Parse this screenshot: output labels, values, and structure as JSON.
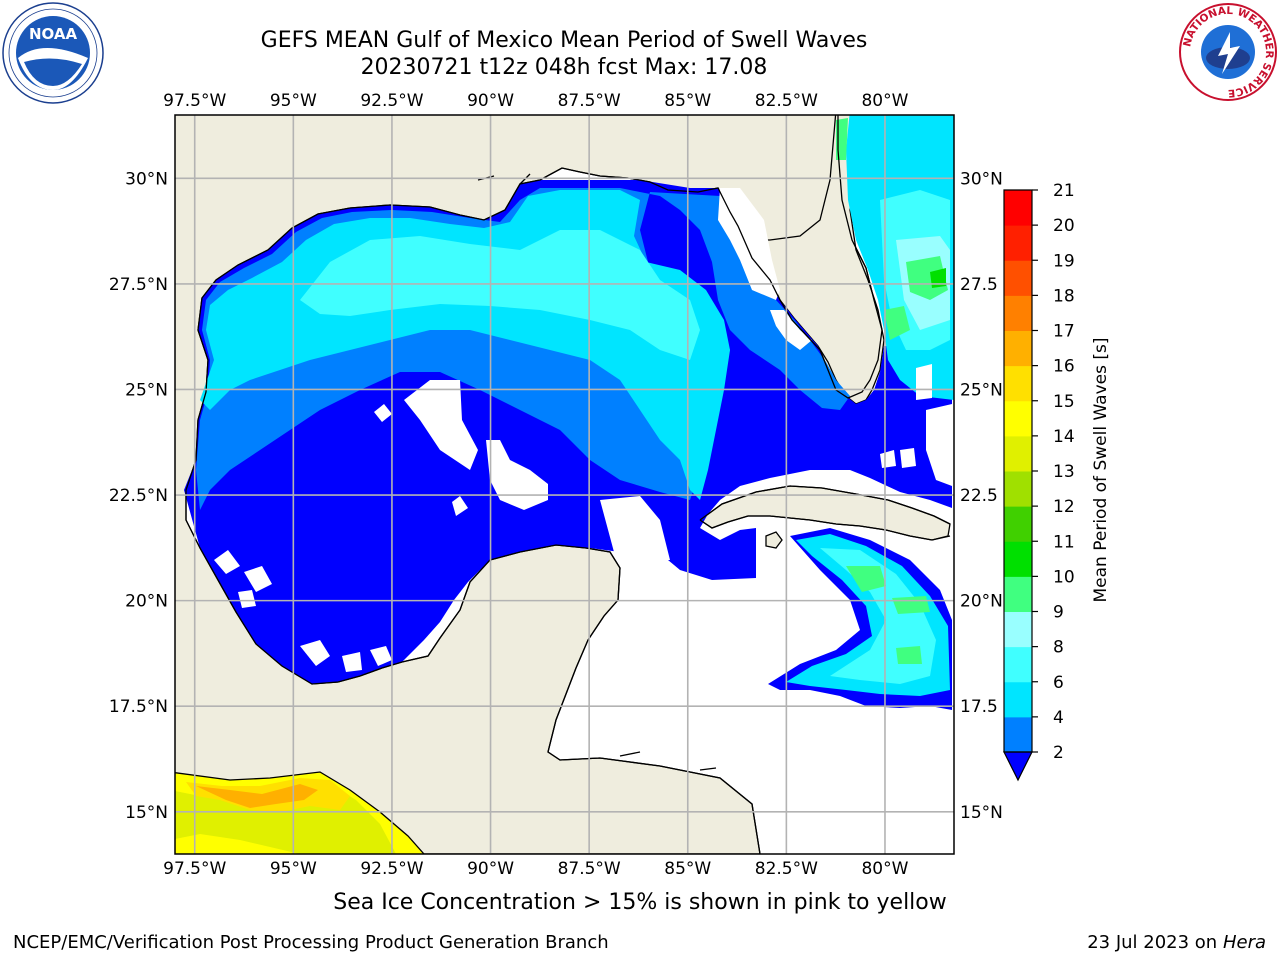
{
  "title_line1": "GEFS MEAN Gulf of Mexico Mean Period of Swell Waves",
  "title_line2": "20230721 t12z 048h fcst   Max: 17.08",
  "lon_ticks": [
    "97.5°W",
    "95°W",
    "92.5°W",
    "90°W",
    "87.5°W",
    "85°W",
    "82.5°W",
    "80°W"
  ],
  "lat_ticks_left": [
    "30°N",
    "27.5°N",
    "25°N",
    "22.5°N",
    "20°N",
    "17.5°N",
    "15°N"
  ],
  "lat_ticks_right": [
    "30°N",
    "27.5",
    "25°N",
    "22.5",
    "20°N",
    "17.5",
    "15°N"
  ],
  "lon_values": [
    -97.5,
    -95,
    -92.5,
    -90,
    -87.5,
    -85,
    -82.5,
    -80
  ],
  "lat_values": [
    30,
    27.5,
    25,
    22.5,
    20,
    17.5,
    15
  ],
  "extent": {
    "lon_min": -98,
    "lon_max": -78.25,
    "lat_min": 14,
    "lat_max": 31.5
  },
  "colorbar": {
    "label": "Mean Period of Swell Waves [s]",
    "levels": [
      "2",
      "4",
      "6",
      "8",
      "9",
      "10",
      "11",
      "12",
      "13",
      "14",
      "15",
      "16",
      "17",
      "18",
      "19",
      "20",
      "21"
    ],
    "colors": [
      "#0000ff",
      "#0080ff",
      "#00e5ff",
      "#40ffff",
      "#99ffff",
      "#40ff80",
      "#00e000",
      "#40d000",
      "#a0e000",
      "#e0f000",
      "#ffff00",
      "#ffe000",
      "#ffb000",
      "#ff8000",
      "#ff5000",
      "#ff2000",
      "#ff0000"
    ]
  },
  "colors": {
    "land": "#efedde",
    "ocean_blank": "#ffffff",
    "grid": "#b3b3b3"
  },
  "note": "Sea Ice Concentration > 15% is shown in pink to yellow",
  "footer_left": "NCEP/EMC/Verification Post Processing Product Generation Branch",
  "footer_right_date": "23 Jul 2023 on",
  "footer_right_host": "Hera",
  "logos": {
    "left": "NOAA",
    "right_ring": "NATIONAL WEATHER SERVICE"
  }
}
